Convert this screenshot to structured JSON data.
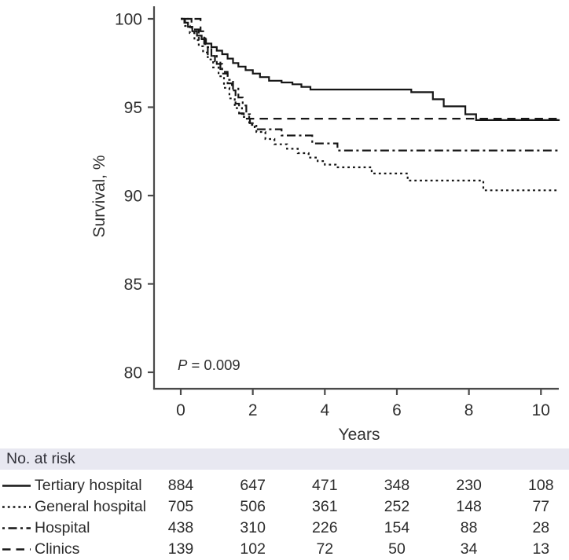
{
  "chart_data": {
    "type": "line",
    "subtype": "kaplan-meier-step",
    "title": "",
    "xlabel": "Years",
    "ylabel": "Survival, %",
    "xlim": [
      -0.75,
      10.55
    ],
    "ylim": [
      79,
      100.5
    ],
    "xticks": [
      0,
      2,
      4,
      6,
      8,
      10
    ],
    "yticks": [
      100,
      95,
      90,
      85,
      80
    ],
    "grid": false,
    "legend_position": "risk-table-left",
    "annotation_p": "P",
    "annotation_rest": " = 0.009",
    "curve_end_year": 10.52,
    "series": [
      {
        "name": "Tertiary hospital",
        "line_style": "solid",
        "points": [
          [
            0,
            100
          ],
          [
            0.1,
            99.78
          ],
          [
            0.2,
            99.55
          ],
          [
            0.32,
            99.3
          ],
          [
            0.45,
            99.05
          ],
          [
            0.58,
            98.85
          ],
          [
            0.7,
            98.6
          ],
          [
            0.85,
            98.4
          ],
          [
            1.0,
            98.2
          ],
          [
            1.15,
            98.0
          ],
          [
            1.3,
            97.75
          ],
          [
            1.45,
            97.5
          ],
          [
            1.6,
            97.3
          ],
          [
            1.8,
            97.1
          ],
          [
            2.0,
            96.9
          ],
          [
            2.2,
            96.7
          ],
          [
            2.45,
            96.5
          ],
          [
            2.8,
            96.4
          ],
          [
            3.1,
            96.3
          ],
          [
            3.35,
            96.15
          ],
          [
            3.6,
            96.0
          ],
          [
            6.4,
            95.85
          ],
          [
            7.0,
            95.45
          ],
          [
            7.3,
            95.05
          ],
          [
            7.9,
            94.6
          ],
          [
            8.2,
            94.27
          ]
        ]
      },
      {
        "name": "General hospital",
        "line_style": "dotted",
        "points": [
          [
            0,
            100
          ],
          [
            0.12,
            99.6
          ],
          [
            0.25,
            99.2
          ],
          [
            0.38,
            98.8
          ],
          [
            0.5,
            98.45
          ],
          [
            0.62,
            98.1
          ],
          [
            0.75,
            97.7
          ],
          [
            0.9,
            97.25
          ],
          [
            1.05,
            96.75
          ],
          [
            1.2,
            96.1
          ],
          [
            1.35,
            95.5
          ],
          [
            1.5,
            94.95
          ],
          [
            1.7,
            94.45
          ],
          [
            1.9,
            94.0
          ],
          [
            2.1,
            93.6
          ],
          [
            2.35,
            93.2
          ],
          [
            2.6,
            92.9
          ],
          [
            2.95,
            92.65
          ],
          [
            3.25,
            92.4
          ],
          [
            3.55,
            92.15
          ],
          [
            3.8,
            91.95
          ],
          [
            4.0,
            91.75
          ],
          [
            4.3,
            91.6
          ],
          [
            5.3,
            91.25
          ],
          [
            6.3,
            90.85
          ],
          [
            8.4,
            90.3
          ]
        ]
      },
      {
        "name": "Hospital",
        "line_style": "dash-dot",
        "points": [
          [
            0,
            100
          ],
          [
            0.3,
            99.4
          ],
          [
            0.5,
            98.9
          ],
          [
            0.68,
            98.4
          ],
          [
            0.85,
            97.9
          ],
          [
            1.0,
            97.45
          ],
          [
            1.15,
            97.0
          ],
          [
            1.3,
            96.55
          ],
          [
            1.45,
            96.05
          ],
          [
            1.6,
            95.55
          ],
          [
            1.72,
            95.1
          ],
          [
            1.82,
            94.6
          ],
          [
            1.92,
            94.1
          ],
          [
            2.05,
            93.75
          ],
          [
            2.8,
            93.4
          ],
          [
            3.65,
            92.95
          ],
          [
            4.35,
            92.55
          ]
        ]
      },
      {
        "name": "Clinics",
        "line_style": "long-dash",
        "points": [
          [
            0,
            100
          ],
          [
            0.55,
            99.3
          ],
          [
            0.65,
            98.6
          ],
          [
            0.75,
            97.9
          ],
          [
            0.95,
            97.6
          ],
          [
            1.1,
            96.9
          ],
          [
            1.3,
            96.35
          ],
          [
            1.42,
            95.95
          ],
          [
            1.52,
            95.2
          ],
          [
            1.62,
            94.65
          ],
          [
            1.75,
            94.35
          ]
        ]
      }
    ]
  },
  "risk_table": {
    "header": "No. at risk",
    "time_points": [
      0,
      2,
      4,
      6,
      8,
      10
    ],
    "rows": [
      {
        "label": "Tertiary hospital",
        "line_style": "solid",
        "values": [
          884,
          647,
          471,
          348,
          230,
          108
        ]
      },
      {
        "label": "General hospital",
        "line_style": "dotted",
        "values": [
          705,
          506,
          361,
          252,
          148,
          77
        ]
      },
      {
        "label": "Hospital",
        "line_style": "dash-dot",
        "values": [
          438,
          310,
          226,
          154,
          88,
          28
        ]
      },
      {
        "label": "Clinics",
        "line_style": "long-dash",
        "values": [
          139,
          102,
          72,
          50,
          34,
          13
        ]
      }
    ]
  },
  "colors": {
    "curve": "#161616",
    "axis": "#4a4a4a",
    "text": "#303030",
    "risk_header_bg": "#e8e8f1",
    "background": "#ffffff"
  }
}
